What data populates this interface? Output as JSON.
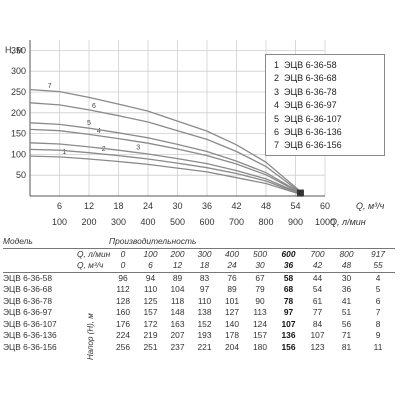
{
  "chart_data": {
    "type": "line",
    "ylabel": "H, м",
    "x_m3h_label": "Q, м³/ч",
    "x_lmin_label": "Q, л/мин",
    "x_m3h_ticks": [
      "6",
      "12",
      "18",
      "24",
      "30",
      "36",
      "42",
      "48",
      "54",
      "60"
    ],
    "x_lmin_ticks": [
      "100",
      "200",
      "300",
      "400",
      "500",
      "600",
      "700",
      "800",
      "900",
      "1000"
    ],
    "y_ticks": [
      "50",
      "100",
      "150",
      "200",
      "250",
      "300",
      "350"
    ],
    "xlim_m3h": [
      0,
      60
    ],
    "ylim": [
      0,
      375
    ],
    "grid": true,
    "legend_position": "top-right",
    "series": [
      {
        "name": "ЭЦВ 6-36-58",
        "x": [
          0,
          6,
          12,
          18,
          24,
          30,
          36,
          42,
          48,
          55
        ],
        "values": [
          96,
          94,
          89,
          83,
          76,
          67,
          58,
          44,
          30,
          4
        ]
      },
      {
        "name": "ЭЦВ 6-36-68",
        "x": [
          0,
          6,
          12,
          18,
          24,
          30,
          36,
          42,
          48,
          55
        ],
        "values": [
          112,
          110,
          104,
          97,
          89,
          79,
          68,
          54,
          36,
          5
        ]
      },
      {
        "name": "ЭЦВ 6-36-78",
        "x": [
          0,
          6,
          12,
          18,
          24,
          30,
          36,
          42,
          48,
          55
        ],
        "values": [
          128,
          125,
          118,
          110,
          101,
          90,
          78,
          61,
          41,
          6
        ]
      },
      {
        "name": "ЭЦВ 6-36-97",
        "x": [
          0,
          6,
          12,
          18,
          24,
          30,
          36,
          42,
          48,
          55
        ],
        "values": [
          160,
          157,
          148,
          138,
          127,
          113,
          97,
          77,
          51,
          7
        ]
      },
      {
        "name": "ЭЦВ 6-36-107",
        "x": [
          0,
          6,
          12,
          18,
          24,
          30,
          36,
          42,
          48,
          55
        ],
        "values": [
          176,
          172,
          163,
          152,
          140,
          124,
          107,
          84,
          56,
          8
        ]
      },
      {
        "name": "ЭЦВ 6-36-136",
        "x": [
          0,
          6,
          12,
          18,
          24,
          30,
          36,
          42,
          48,
          55
        ],
        "values": [
          224,
          219,
          207,
          193,
          178,
          157,
          136,
          107,
          71,
          9
        ]
      },
      {
        "name": "ЭЦВ 6-36-156",
        "x": [
          0,
          6,
          12,
          18,
          24,
          30,
          36,
          42,
          48,
          55
        ],
        "values": [
          256,
          251,
          237,
          221,
          204,
          180,
          156,
          123,
          81,
          11
        ]
      }
    ],
    "legend": [
      {
        "num": "1",
        "name": "ЭЦВ 6-36-58"
      },
      {
        "num": "2",
        "name": "ЭЦВ 6-36-68"
      },
      {
        "num": "3",
        "name": "ЭЦВ 6-36-78"
      },
      {
        "num": "4",
        "name": "ЭЦВ 6-36-97"
      },
      {
        "num": "5",
        "name": "ЭЦВ 6-36-107"
      },
      {
        "num": "6",
        "name": "ЭЦВ 6-36-136"
      },
      {
        "num": "7",
        "name": "ЭЦВ 6-36-156"
      }
    ]
  },
  "table": {
    "model_header": "Модель",
    "productivity_header": "Производительность",
    "head_label": "Напор (Н), м",
    "q_lmin_label": "Q, л/мин",
    "q_m3h_label": "Q, м³/ч",
    "q_lmin": [
      "0",
      "100",
      "200",
      "300",
      "400",
      "500",
      "600",
      "700",
      "800",
      "917"
    ],
    "q_m3h": [
      "0",
      "6",
      "12",
      "18",
      "24",
      "30",
      "36",
      "42",
      "48",
      "55"
    ],
    "rows": [
      {
        "model": "ЭЦВ 6-36-58",
        "values": [
          "96",
          "94",
          "89",
          "83",
          "76",
          "67",
          "58",
          "44",
          "30",
          "4"
        ]
      },
      {
        "model": "ЭЦВ 6-36-68",
        "values": [
          "112",
          "110",
          "104",
          "97",
          "89",
          "79",
          "68",
          "54",
          "36",
          "5"
        ]
      },
      {
        "model": "ЭЦВ 6-36-78",
        "values": [
          "128",
          "125",
          "118",
          "110",
          "101",
          "90",
          "78",
          "61",
          "41",
          "6"
        ]
      },
      {
        "model": "ЭЦВ 6-36-97",
        "values": [
          "160",
          "157",
          "148",
          "138",
          "127",
          "113",
          "97",
          "77",
          "51",
          "7"
        ]
      },
      {
        "model": "ЭЦВ 6-36-107",
        "values": [
          "176",
          "172",
          "163",
          "152",
          "140",
          "124",
          "107",
          "84",
          "56",
          "8"
        ]
      },
      {
        "model": "ЭЦВ 6-36-136",
        "values": [
          "224",
          "219",
          "207",
          "193",
          "178",
          "157",
          "136",
          "107",
          "71",
          "9"
        ]
      },
      {
        "model": "ЭЦВ 6-36-156",
        "values": [
          "256",
          "251",
          "237",
          "221",
          "204",
          "180",
          "156",
          "123",
          "81",
          "11"
        ]
      }
    ]
  },
  "colors": {
    "curve": "#8a8a8a",
    "grid": "#cfcfcf",
    "axis": "#555555",
    "marker": "#333333"
  }
}
